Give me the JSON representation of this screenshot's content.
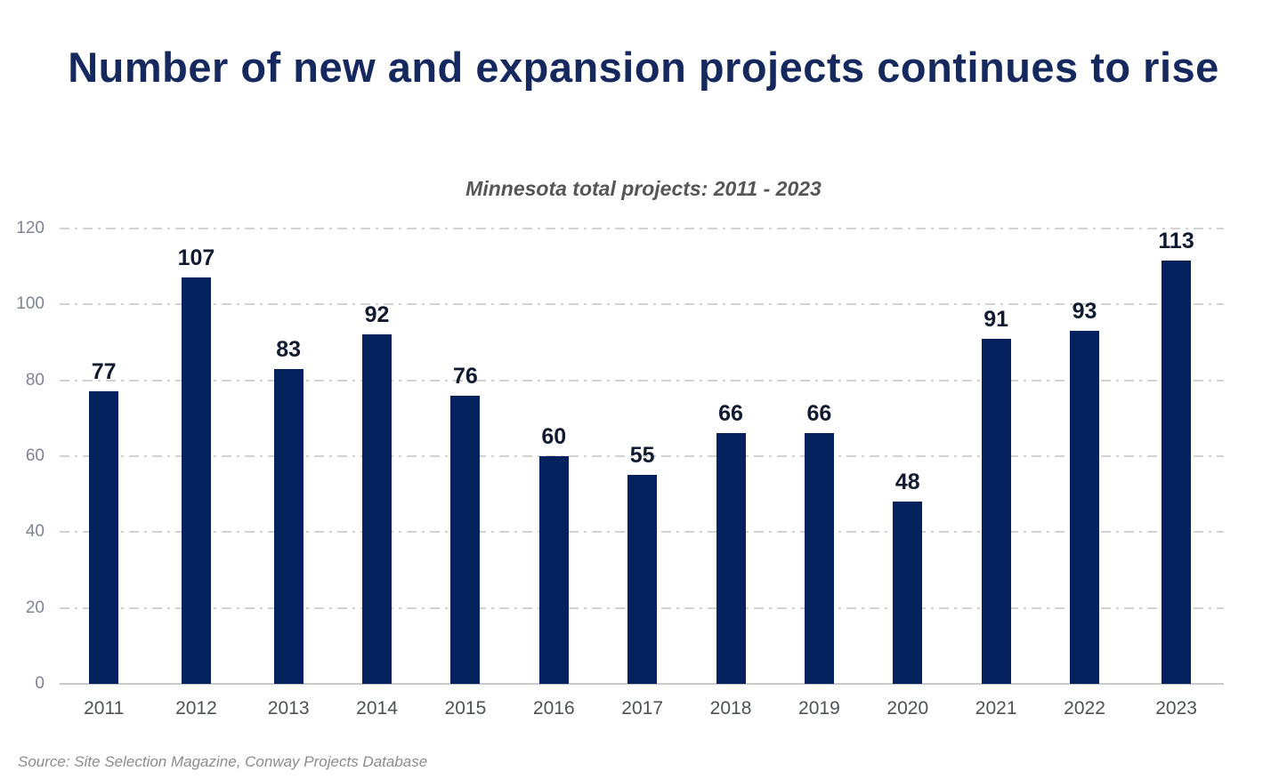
{
  "header": {
    "title": "Number of new and expansion projects continues to rise",
    "subtitle": "Minnesota total projects: 2011 - 2023"
  },
  "footer": {
    "source": "Source: Site Selection Magazine, Conway Projects Database"
  },
  "colors": {
    "bar": "#06225e",
    "title": "#15295f",
    "subtitle": "#565656",
    "bar_value_label": "#101b31",
    "y_tick": "#7d8494",
    "x_tick": "#4d5257",
    "gridline": "#d2d2d2",
    "axis_line": "#c9c9c9",
    "source": "#8c8c8c",
    "background": "#ffffff"
  },
  "chart_data": {
    "type": "bar",
    "title": "Number of new and expansion projects continues to rise",
    "subtitle": "Minnesota total projects: 2011 - 2023",
    "categories": [
      "2011",
      "2012",
      "2013",
      "2014",
      "2015",
      "2016",
      "2017",
      "2018",
      "2019",
      "2020",
      "2021",
      "2022",
      "2023"
    ],
    "values": [
      77,
      107,
      83,
      92,
      76,
      60,
      55,
      66,
      66,
      48,
      91,
      93,
      113
    ],
    "data_labels": [
      77,
      107,
      83,
      92,
      76,
      60,
      55,
      66,
      66,
      48,
      91,
      93,
      113
    ],
    "xlabel": "",
    "ylabel": "",
    "ylim": [
      0,
      120
    ],
    "yticks": [
      0,
      20,
      40,
      60,
      80,
      100,
      120
    ],
    "grid": "horizontal dashed",
    "legend": "none",
    "bar_color": "#06225e",
    "source": "Source: Site Selection Magazine, Conway Projects Database"
  }
}
